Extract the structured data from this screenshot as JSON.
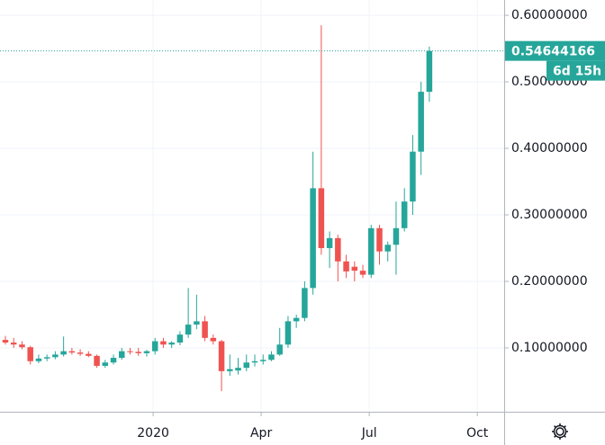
{
  "chart_data": {
    "type": "candlestick",
    "up_color": "#26a69a",
    "down_color": "#ef5350",
    "x": [
      0,
      1,
      2,
      3,
      4,
      5,
      6,
      7,
      8,
      9,
      10,
      11,
      12,
      13,
      14,
      15,
      16,
      17,
      18,
      19,
      20,
      21,
      22,
      23,
      24,
      25,
      26,
      27,
      28,
      29,
      30,
      31,
      32,
      33,
      34,
      35,
      36,
      37,
      38,
      39,
      40,
      41,
      42,
      43,
      44,
      45,
      46,
      47,
      48,
      49,
      50,
      51
    ],
    "open": [
      0.112,
      0.108,
      0.105,
      0.101,
      0.08,
      0.084,
      0.086,
      0.09,
      0.095,
      0.093,
      0.091,
      0.088,
      0.073,
      0.078,
      0.085,
      0.095,
      0.094,
      0.092,
      0.095,
      0.11,
      0.105,
      0.108,
      0.12,
      0.135,
      0.14,
      0.115,
      0.11,
      0.065,
      0.066,
      0.07,
      0.078,
      0.08,
      0.082,
      0.09,
      0.105,
      0.14,
      0.145,
      0.19,
      0.34,
      0.25,
      0.265,
      0.23,
      0.222,
      0.216,
      0.21,
      0.28,
      0.245,
      0.255,
      0.28,
      0.32,
      0.395,
      0.485
    ],
    "high": [
      0.118,
      0.115,
      0.11,
      0.103,
      0.09,
      0.09,
      0.095,
      0.117,
      0.1,
      0.098,
      0.095,
      0.09,
      0.082,
      0.09,
      0.1,
      0.1,
      0.1,
      0.097,
      0.115,
      0.115,
      0.11,
      0.125,
      0.19,
      0.18,
      0.148,
      0.12,
      0.112,
      0.09,
      0.085,
      0.09,
      0.09,
      0.09,
      0.095,
      0.13,
      0.148,
      0.15,
      0.2,
      0.395,
      0.585,
      0.275,
      0.27,
      0.24,
      0.23,
      0.225,
      0.285,
      0.285,
      0.26,
      0.32,
      0.34,
      0.42,
      0.5,
      0.553
    ],
    "low": [
      0.105,
      0.1,
      0.098,
      0.075,
      0.077,
      0.08,
      0.083,
      0.087,
      0.09,
      0.088,
      0.086,
      0.07,
      0.07,
      0.075,
      0.082,
      0.09,
      0.088,
      0.087,
      0.09,
      0.1,
      0.1,
      0.104,
      0.115,
      0.128,
      0.11,
      0.105,
      0.035,
      0.058,
      0.06,
      0.065,
      0.072,
      0.075,
      0.08,
      0.088,
      0.1,
      0.13,
      0.14,
      0.18,
      0.24,
      0.22,
      0.2,
      0.205,
      0.2,
      0.205,
      0.205,
      0.225,
      0.23,
      0.21,
      0.275,
      0.3,
      0.36,
      0.47
    ],
    "close": [
      0.108,
      0.105,
      0.101,
      0.08,
      0.084,
      0.086,
      0.09,
      0.095,
      0.093,
      0.091,
      0.088,
      0.073,
      0.078,
      0.085,
      0.095,
      0.094,
      0.092,
      0.095,
      0.11,
      0.105,
      0.108,
      0.12,
      0.135,
      0.14,
      0.115,
      0.11,
      0.065,
      0.068,
      0.07,
      0.078,
      0.08,
      0.082,
      0.09,
      0.105,
      0.14,
      0.145,
      0.19,
      0.34,
      0.25,
      0.265,
      0.23,
      0.215,
      0.216,
      0.21,
      0.28,
      0.245,
      0.255,
      0.28,
      0.32,
      0.395,
      0.485,
      0.54644166
    ],
    "xlim": [
      -0.65,
      60
    ],
    "xticks": [
      {
        "value": 17.77,
        "label": "2020"
      },
      {
        "value": 30.77,
        "label": "Apr"
      },
      {
        "value": 43.77,
        "label": "Jul"
      },
      {
        "value": 56.77,
        "label": "Oct"
      }
    ],
    "ylim": [
      0.004,
      0.623
    ],
    "yticks": [
      {
        "value": 0.1,
        "label": "0.10000000"
      },
      {
        "value": 0.2,
        "label": "0.20000000"
      },
      {
        "value": 0.3,
        "label": "0.30000000"
      },
      {
        "value": 0.4,
        "label": "0.40000000"
      },
      {
        "value": 0.5,
        "label": "0.50000000"
      },
      {
        "value": 0.6,
        "label": "0.60000000"
      }
    ],
    "last_price": {
      "value": 0.54644166,
      "label": "0.54644166"
    },
    "countdown": "6d 15h",
    "grid": true
  }
}
